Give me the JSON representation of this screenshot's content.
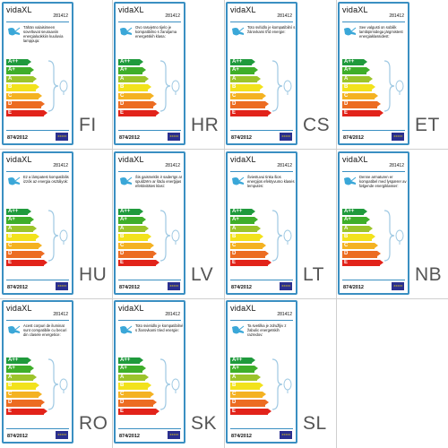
{
  "cards": [
    {
      "lang": "FI",
      "brand": "vidaXL",
      "code": "281412",
      "desc": "Tähän valaisimeen soveltuvat seuraaviin energialuokkiin kuuluvia lamppuja:",
      "regulation": "874/2012"
    },
    {
      "lang": "HR",
      "brand": "vidaXL",
      "code": "281412",
      "desc": "Ovo rasvjetno tijelo je kompatibilno s žaruljama energetskih klasa:",
      "regulation": "874/2012"
    },
    {
      "lang": "CS",
      "brand": "vidaXL",
      "code": "281412",
      "desc": "Toto svítidlo je kompatibilní s žárovkami tříd energie:",
      "regulation": "874/2012"
    },
    {
      "lang": "ET",
      "brand": "vidaXL",
      "code": "281412",
      "desc": "See valgusti on sobilik lambipirnidega järgmistest energiaklassidest:",
      "regulation": "874/2012"
    },
    {
      "lang": "HU",
      "brand": "vidaXL",
      "code": "281412",
      "desc": "Ez a lámpatest kompatibilis izzók az energia osztályok:",
      "regulation": "874/2012"
    },
    {
      "lang": "LV",
      "brand": "vidaXL",
      "code": "281412",
      "desc": "Šis gaismeklis ir saderīgs ar spuldzēm ar šādu enerģijas efektivitātes klasi:",
      "regulation": "874/2012"
    },
    {
      "lang": "LT",
      "brand": "vidaXL",
      "code": "281412",
      "desc": "Šviestuvui tinka šios energijos efektyvumo klasės lemputės:",
      "regulation": "874/2012"
    },
    {
      "lang": "NB",
      "brand": "vidaXL",
      "code": "281412",
      "desc": "Denne armaturen er kompatibel med lyspærer av følgende energiklasser:",
      "regulation": "874/2012"
    },
    {
      "lang": "RO",
      "brand": "vidaXL",
      "code": "281412",
      "desc": "Acest corpuri de iluminat sunt compatibile cu becuri din clasele energetice:",
      "regulation": "874/2012"
    },
    {
      "lang": "SK",
      "brand": "vidaXL",
      "code": "281412",
      "desc": "Toto svietidlo je kompatibilné s žiarovkami tried energie:",
      "regulation": "874/2012"
    },
    {
      "lang": "SL",
      "brand": "vidaXL",
      "code": "281412",
      "desc": "Ta svetilka je združljiv z žabulic energetskih razredov:",
      "regulation": "874/2012"
    }
  ],
  "energy_classes": [
    {
      "label": "A++",
      "color": "#1f9a3c"
    },
    {
      "label": "A+",
      "color": "#3fae2a"
    },
    {
      "label": "A",
      "color": "#9cc42b"
    },
    {
      "label": "B",
      "color": "#f2e21c"
    },
    {
      "label": "C",
      "color": "#f4b222"
    },
    {
      "label": "D",
      "color": "#ec6c22"
    },
    {
      "label": "E",
      "color": "#e2231a"
    }
  ],
  "colors": {
    "border": "#3a8fc2",
    "eu_flag": "#2a2f8f",
    "eu_star": "#f5d60a"
  },
  "icons": {
    "lamp": "lamp-icon",
    "flag": "eu-flag-icon"
  }
}
